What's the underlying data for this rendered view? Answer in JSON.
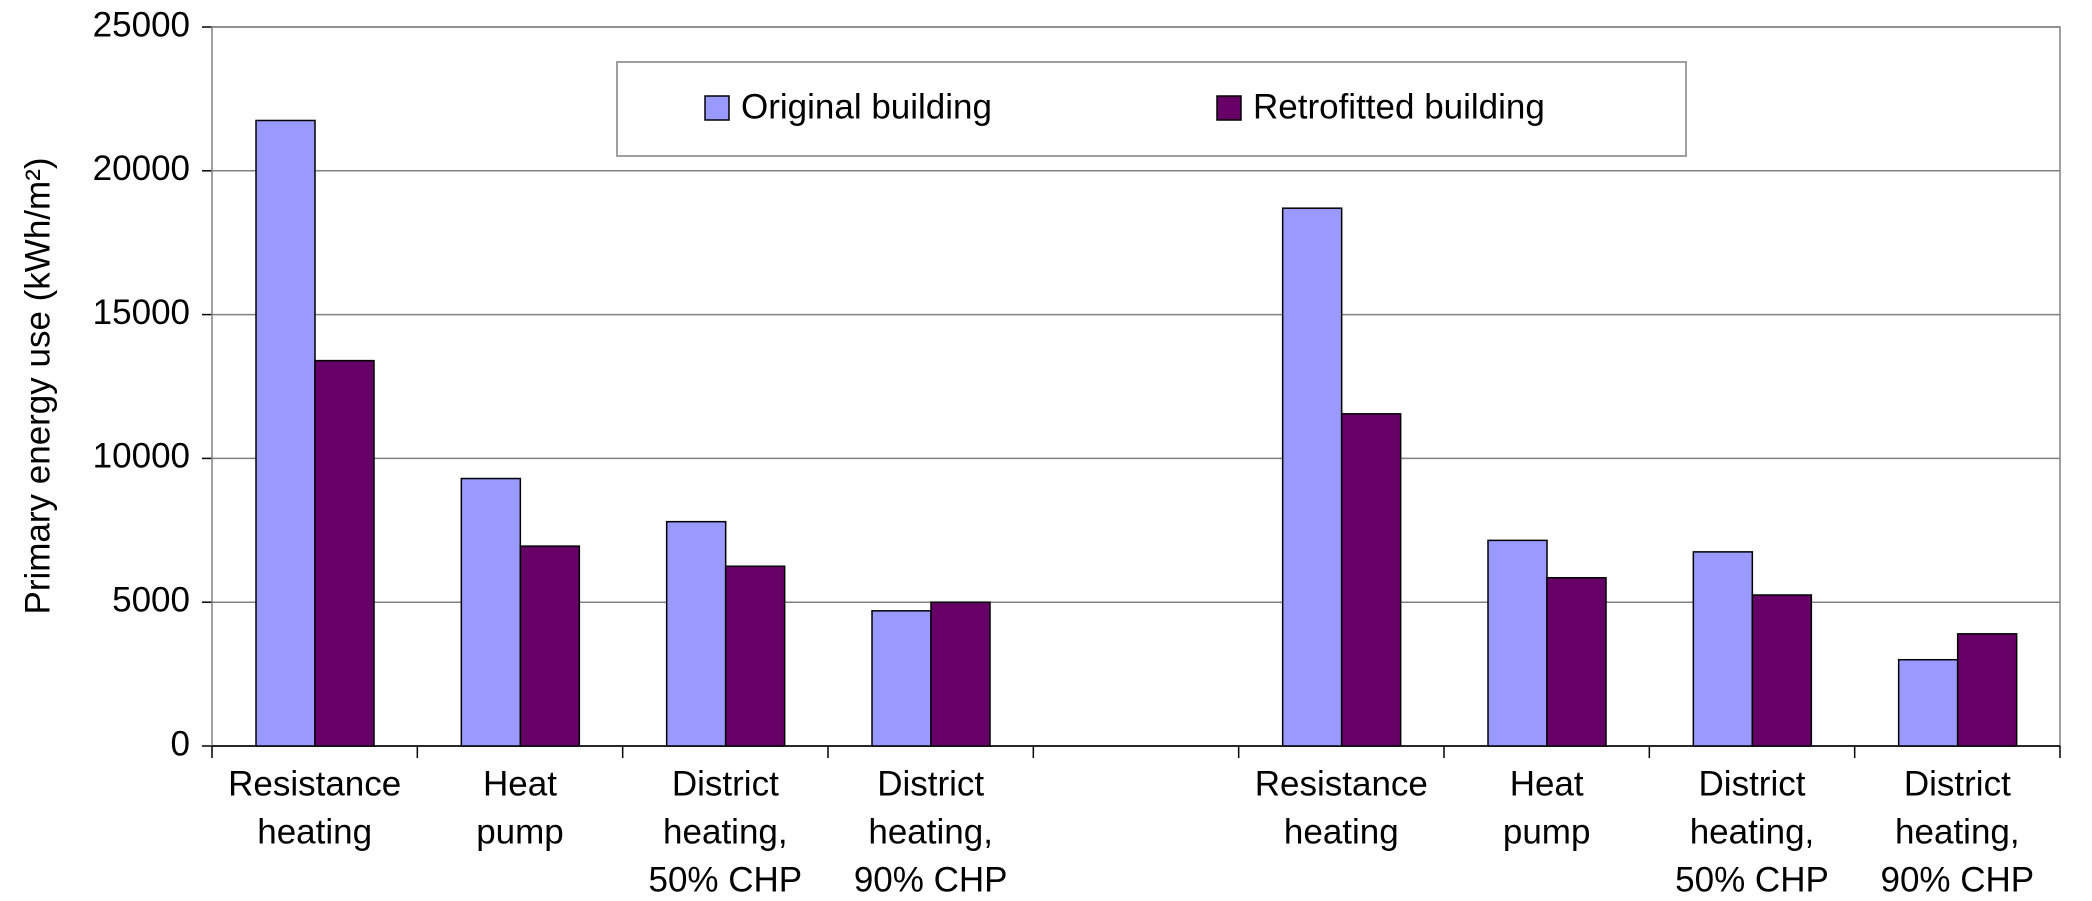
{
  "chart_data": {
    "type": "bar",
    "y_label": "Primary energy use (kWh/m²)",
    "categories": [
      [
        "Resistance",
        "heating"
      ],
      [
        "Heat",
        "pump"
      ],
      [
        "District",
        "heating,",
        "50% CHP"
      ],
      [
        "District",
        "heating,",
        "90% CHP"
      ],
      null,
      [
        "Resistance",
        "heating"
      ],
      [
        "Heat",
        "pump"
      ],
      [
        "District",
        "heating,",
        "50% CHP"
      ],
      [
        "District",
        "heating,",
        "90% CHP"
      ]
    ],
    "series": [
      {
        "name": "Original building",
        "color": "#9999ff",
        "values": [
          21750,
          9300,
          7800,
          4700,
          null,
          18700,
          7150,
          6750,
          3000
        ]
      },
      {
        "name": "Retrofitted building",
        "color": "#660066",
        "values": [
          13400,
          6950,
          6250,
          5000,
          null,
          11550,
          5850,
          5250,
          3900
        ]
      }
    ],
    "ylim": [
      0,
      25000
    ],
    "yticks": [
      0,
      5000,
      10000,
      15000,
      20000,
      25000
    ],
    "grid": true,
    "legend": "top"
  }
}
